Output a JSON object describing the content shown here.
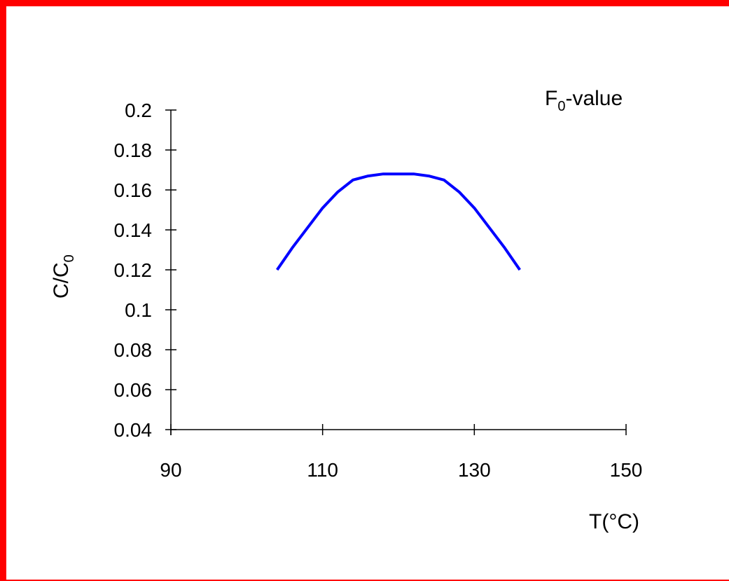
{
  "chart_data": {
    "type": "line",
    "title": "",
    "annotation": {
      "main": "F",
      "sub": "0",
      "tail": "-value"
    },
    "xlabel": "T(°C)",
    "ylabel": {
      "main": "C/C",
      "sub": "0"
    },
    "xlim": [
      90,
      150
    ],
    "ylim": [
      0.04,
      0.2
    ],
    "x_ticks": [
      90,
      110,
      130,
      150
    ],
    "x_tick_labels": [
      "90",
      "110",
      "130",
      "150"
    ],
    "y_ticks": [
      0.04,
      0.06,
      0.08,
      0.1,
      0.12,
      0.14,
      0.16,
      0.18,
      0.2
    ],
    "y_tick_labels": [
      "0.04",
      "0.06",
      "0.08",
      "0.1",
      "0.12",
      "0.14",
      "0.16",
      "0.18",
      "0.2"
    ],
    "grid": false,
    "legend": "none",
    "series": [
      {
        "color": "#0000ff",
        "x": [
          104,
          106,
          108,
          110,
          112,
          114,
          116,
          118,
          120,
          122,
          124,
          126,
          128,
          130,
          132,
          134,
          136
        ],
        "y": [
          0.12,
          0.131,
          0.141,
          0.151,
          0.159,
          0.165,
          0.167,
          0.168,
          0.168,
          0.168,
          0.167,
          0.165,
          0.159,
          0.151,
          0.141,
          0.131,
          0.12
        ]
      }
    ]
  },
  "frame": {
    "border_color": "#ff0000"
  }
}
